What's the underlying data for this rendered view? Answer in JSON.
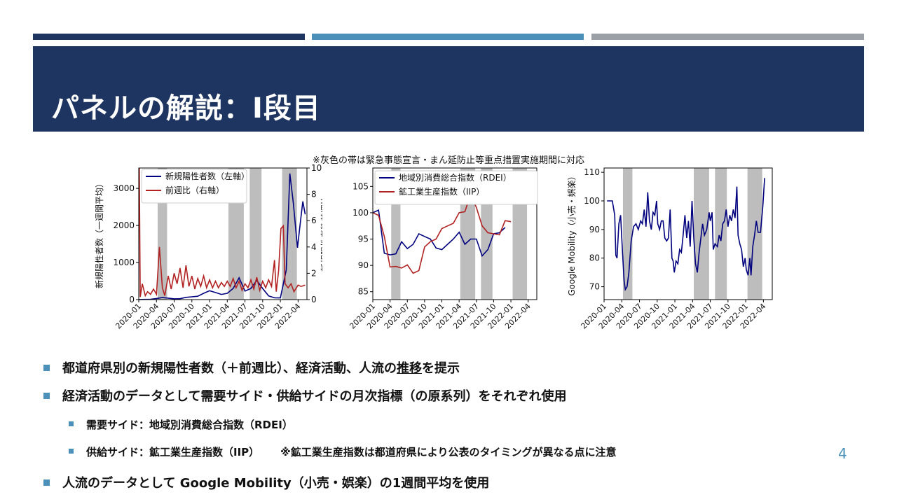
{
  "slide": {
    "title": "パネルの解説：I段目",
    "note": "※灰色の帯は緊急事態宣言・まん延防止等重点措置実施期間に対応",
    "page_number": "4"
  },
  "bullets": {
    "b1_pre": "都道府県別の新規陽性者数（＋前週比）、経済活動、人流の",
    "b1_underlined": "推移",
    "b1_post": "を提示",
    "b2": "経済活動のデータとして需要サイド・供給サイドの月次指標（の原系列）をそれぞれ使用",
    "b3": "需要サイド：地域別消費総合指数（RDEI）",
    "b4_a": "供給サイド：鉱工業生産指数（IIP）",
    "b4_b": "※鉱工業生産指数は都道府県により公表のタイミングが異なる点に注意",
    "b5": "人流のデータとして Google Mobility（小売・娯楽）の1週間平均を使用"
  },
  "colors": {
    "navy": "#1e3461",
    "blue": "#4a90b8",
    "gray": "#9aa0a6",
    "line_blue": "#00007f",
    "line_red": "#b22222",
    "band": "#bdbdbd"
  },
  "chart_data": [
    {
      "type": "line",
      "ylabel": "新規陽性者数（一週間平均）",
      "ylabel_right": "新規陽性者数前週比",
      "x_ticks": [
        "2020-01",
        "2020-04",
        "2020-07",
        "2020-10",
        "2021-01",
        "2021-04",
        "2021-07",
        "2021-10",
        "2022-01",
        "2022-04"
      ],
      "y_ticks": [
        "0",
        "1000",
        "2000",
        "3000"
      ],
      "y_right_ticks": [
        "0",
        "2",
        "4",
        "6",
        "8",
        "10"
      ],
      "ylim": [
        0,
        3550
      ],
      "ylim_right": [
        0,
        10
      ],
      "bands": [
        [
          3.2,
          4.8
        ],
        [
          15.2,
          17.8
        ],
        [
          18.8,
          20.8
        ],
        [
          24.3,
          26.8
        ]
      ],
      "legend": [
        "新規陽性者数（左軸）",
        "前週比（右軸）"
      ],
      "series": [
        {
          "name": "新規陽性者数（左軸）",
          "axis": "left",
          "color": "#00007f",
          "points": [
            [
              0,
              0
            ],
            [
              1,
              5
            ],
            [
              2,
              10
            ],
            [
              3,
              30
            ],
            [
              4,
              55
            ],
            [
              5,
              40
            ],
            [
              6,
              20
            ],
            [
              7,
              25
            ],
            [
              8,
              60
            ],
            [
              9,
              75
            ],
            [
              10,
              90
            ],
            [
              11,
              170
            ],
            [
              12,
              240
            ],
            [
              13,
              190
            ],
            [
              14,
              140
            ],
            [
              15,
              170
            ],
            [
              16,
              300
            ],
            [
              17,
              590
            ],
            [
              18,
              230
            ],
            [
              19,
              300
            ],
            [
              20,
              520
            ],
            [
              21,
              300
            ],
            [
              22,
              100
            ],
            [
              23,
              50
            ],
            [
              24,
              45
            ],
            [
              25,
              800
            ],
            [
              25.6,
              3400
            ],
            [
              26.2,
              2600
            ],
            [
              26.9,
              1400
            ],
            [
              27.4,
              2100
            ],
            [
              27.8,
              2650
            ],
            [
              28.2,
              2300
            ]
          ]
        },
        {
          "name": "前週比（右軸）",
          "axis": "right",
          "color": "#b22222",
          "points": [
            [
              0.1,
              10
            ],
            [
              0.25,
              0.2
            ],
            [
              0.6,
              1.2
            ],
            [
              1.1,
              0.3
            ],
            [
              1.5,
              0.6
            ],
            [
              2,
              0.4
            ],
            [
              2.5,
              0.8
            ],
            [
              3,
              0.4
            ],
            [
              3.5,
              4.0
            ],
            [
              4,
              0.9
            ],
            [
              4.4,
              0.3
            ],
            [
              5,
              1.8
            ],
            [
              5.5,
              0.8
            ],
            [
              6,
              2.0
            ],
            [
              6.5,
              1.2
            ],
            [
              7,
              2.4
            ],
            [
              7.5,
              0.9
            ],
            [
              8,
              2.6
            ],
            [
              8.5,
              1.0
            ],
            [
              9,
              1.8
            ],
            [
              9.5,
              0.8
            ],
            [
              10,
              1.6
            ],
            [
              10.5,
              1.0
            ],
            [
              11,
              1.8
            ],
            [
              11.5,
              0.9
            ],
            [
              12,
              1.5
            ],
            [
              12.5,
              0.9
            ],
            [
              13,
              1.4
            ],
            [
              13.5,
              0.9
            ],
            [
              14,
              1.3
            ],
            [
              14.5,
              1.0
            ],
            [
              15,
              1.4
            ],
            [
              15.5,
              1.0
            ],
            [
              16,
              1.6
            ],
            [
              16.5,
              0.9
            ],
            [
              17,
              1.4
            ],
            [
              17.5,
              0.7
            ],
            [
              18,
              1.2
            ],
            [
              18.5,
              0.9
            ],
            [
              19,
              1.5
            ],
            [
              19.5,
              0.8
            ],
            [
              20,
              1.7
            ],
            [
              20.5,
              0.7
            ],
            [
              21,
              1.4
            ],
            [
              21.5,
              0.9
            ],
            [
              22,
              1.5
            ],
            [
              22.5,
              1.0
            ],
            [
              23,
              3.0
            ],
            [
              23.3,
              0.6
            ],
            [
              23.7,
              2.2
            ],
            [
              24.1,
              5.4
            ],
            [
              24.5,
              5.6
            ],
            [
              24.8,
              1.2
            ],
            [
              25.3,
              0.9
            ],
            [
              25.8,
              1.2
            ],
            [
              26.3,
              0.6
            ],
            [
              27,
              1.1
            ],
            [
              27.5,
              1.0
            ],
            [
              28.2,
              1.1
            ]
          ]
        }
      ]
    },
    {
      "type": "line",
      "x_ticks": [
        "2020-01",
        "2020-04",
        "2020-07",
        "2020-10",
        "2021-01",
        "2021-04",
        "2021-07",
        "2021-10",
        "2022-01",
        "2022-04"
      ],
      "y_ticks": [
        "85",
        "90",
        "95",
        "100",
        "105"
      ],
      "ylim": [
        83.5,
        108.5
      ],
      "bands": [
        [
          3.2,
          4.8
        ],
        [
          15.2,
          17.8
        ],
        [
          18.8,
          20.8
        ],
        [
          24.3,
          26.8
        ]
      ],
      "legend": [
        "地域別消費総合指数（RDEI）",
        "鉱工業生産指数（IIP）"
      ],
      "series": [
        {
          "name": "地域別消費総合指数（RDEI）",
          "color": "#00007f",
          "points": [
            [
              0,
              100
            ],
            [
              1,
              100.5
            ],
            [
              2,
              92.3
            ],
            [
              3,
              92
            ],
            [
              4,
              92.2
            ],
            [
              5,
              94.5
            ],
            [
              6,
              93.2
            ],
            [
              7,
              94
            ],
            [
              8,
              96
            ],
            [
              9,
              95.5
            ],
            [
              10,
              95
            ],
            [
              11,
              93.3
            ],
            [
              12,
              93
            ],
            [
              13,
              94
            ],
            [
              14,
              95
            ],
            [
              15,
              96.3
            ],
            [
              16,
              94
            ],
            [
              17,
              95
            ],
            [
              18,
              95
            ],
            [
              19,
              91.8
            ],
            [
              20,
              93
            ],
            [
              21,
              96
            ],
            [
              22,
              96.2
            ],
            [
              23,
              97.2
            ]
          ]
        },
        {
          "name": "鉱工業生産指数（IIP）",
          "color": "#b22222",
          "points": [
            [
              0,
              100
            ],
            [
              1,
              99.5
            ],
            [
              2,
              95.5
            ],
            [
              3,
              89.7
            ],
            [
              4,
              89.8
            ],
            [
              5,
              89.5
            ],
            [
              6,
              90.1
            ],
            [
              7,
              88.5
            ],
            [
              8,
              89
            ],
            [
              9,
              93.5
            ],
            [
              10,
              94.5
            ],
            [
              11,
              95
            ],
            [
              12,
              97
            ],
            [
              13,
              97.5
            ],
            [
              14,
              98
            ],
            [
              15,
              100
            ],
            [
              16,
              100.2
            ],
            [
              17,
              103.5
            ],
            [
              18,
              101
            ],
            [
              19,
              97.5
            ],
            [
              20,
              96.2
            ],
            [
              21,
              96
            ],
            [
              22,
              95.8
            ],
            [
              23,
              98.5
            ],
            [
              24,
              98.3
            ]
          ]
        }
      ]
    },
    {
      "type": "line",
      "ylabel": "Google Mobility（小売・娯楽）",
      "x_ticks": [
        "2020-01",
        "2020-04",
        "2020-07",
        "2020-10",
        "2021-01",
        "2021-04",
        "2021-07",
        "2021-10",
        "2022-01",
        "2022-04"
      ],
      "y_ticks": [
        "70",
        "80",
        "90",
        "100",
        "110"
      ],
      "ylim": [
        65.5,
        111.5
      ],
      "bands": [
        [
          3.2,
          4.8
        ],
        [
          15.2,
          17.8
        ],
        [
          18.8,
          20.8
        ],
        [
          24.3,
          26.8
        ]
      ],
      "series": [
        {
          "name": "",
          "color": "#00007f",
          "points": [
            [
              0.5,
              100
            ],
            [
              1,
              100
            ],
            [
              1.4,
              100
            ],
            [
              1.8,
              95
            ],
            [
              2,
              81
            ],
            [
              2.2,
              80
            ],
            [
              2.5,
              92
            ],
            [
              2.8,
              95
            ],
            [
              3.1,
              83
            ],
            [
              3.4,
              72
            ],
            [
              3.6,
              69
            ],
            [
              3.9,
              70
            ],
            [
              4.2,
              75
            ],
            [
              4.6,
              86
            ],
            [
              5,
              91
            ],
            [
              5.4,
              92
            ],
            [
              5.8,
              90
            ],
            [
              6.2,
              93
            ],
            [
              6.5,
              92
            ],
            [
              6.8,
              97
            ],
            [
              7.1,
              91
            ],
            [
              7.4,
              103
            ],
            [
              7.7,
              93
            ],
            [
              8,
              90
            ],
            [
              8.3,
              96
            ],
            [
              8.6,
              95
            ],
            [
              8.9,
              100
            ],
            [
              9.1,
              92
            ],
            [
              9.4,
              90
            ],
            [
              9.7,
              93
            ],
            [
              10,
              93
            ],
            [
              10.3,
              87
            ],
            [
              10.6,
              86
            ],
            [
              10.9,
              87
            ],
            [
              11.2,
              97
            ],
            [
              11.5,
              80
            ],
            [
              11.7,
              79
            ],
            [
              11.9,
              75
            ],
            [
              12.2,
              79
            ],
            [
              12.5,
              78
            ],
            [
              12.8,
              83
            ],
            [
              13.1,
              82
            ],
            [
              13.4,
              88
            ],
            [
              13.7,
              95
            ],
            [
              14,
              87
            ],
            [
              14.3,
              93
            ],
            [
              14.6,
              84
            ],
            [
              14.9,
              100
            ],
            [
              15.2,
              87
            ],
            [
              15.5,
              78
            ],
            [
              15.8,
              75
            ],
            [
              16.1,
              82
            ],
            [
              16.4,
              87
            ],
            [
              16.7,
              92
            ],
            [
              17,
              88
            ],
            [
              17.4,
              90
            ],
            [
              17.8,
              96
            ],
            [
              18,
              93
            ],
            [
              18.3,
              96
            ],
            [
              18.5,
              83
            ],
            [
              18.8,
              85
            ],
            [
              19.2,
              84
            ],
            [
              19.5,
              88
            ],
            [
              19.8,
              86
            ],
            [
              20.1,
              92
            ],
            [
              20.4,
              93
            ],
            [
              20.7,
              97
            ],
            [
              21,
              91
            ],
            [
              21.3,
              95
            ],
            [
              21.6,
              93
            ],
            [
              21.9,
              97
            ],
            [
              22.2,
              94
            ],
            [
              22.5,
              105
            ],
            [
              22.7,
              88
            ],
            [
              23,
              85
            ],
            [
              23.3,
              83
            ],
            [
              23.6,
              77
            ],
            [
              23.9,
              80
            ],
            [
              24.1,
              76
            ],
            [
              24.4,
              74
            ],
            [
              24.7,
              80
            ],
            [
              24.9,
              74
            ],
            [
              25.2,
              84
            ],
            [
              25.5,
              88
            ],
            [
              25.8,
              93
            ],
            [
              26.1,
              89
            ],
            [
              26.5,
              89
            ],
            [
              26.9,
              98
            ],
            [
              27.2,
              108
            ]
          ]
        }
      ]
    }
  ]
}
